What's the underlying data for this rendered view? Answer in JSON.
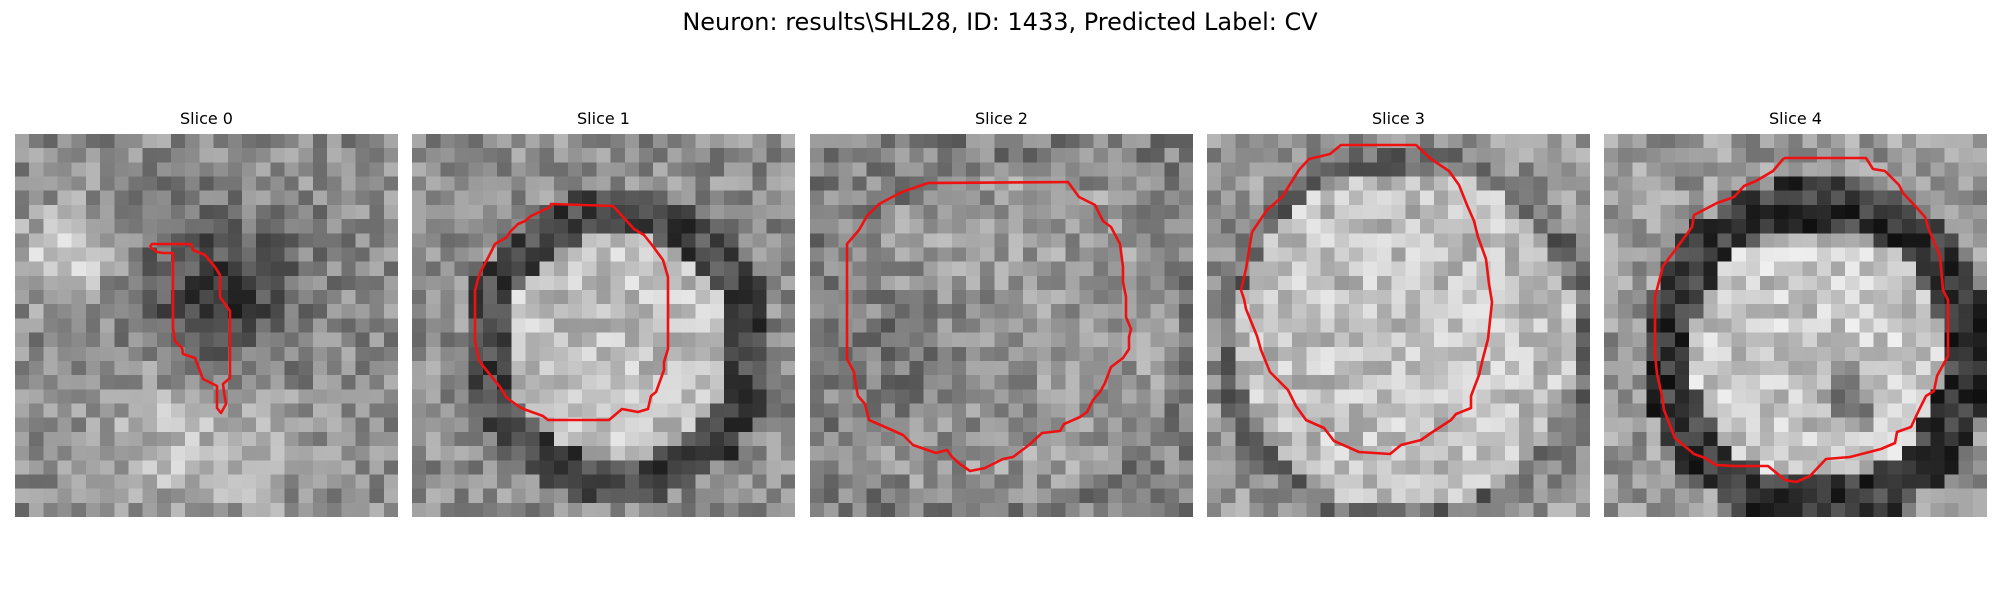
{
  "figure": {
    "title": "Neuron: results\\SHL28, ID: 1433, Predicted Label: CV"
  },
  "colors": {
    "contour": "#ee1111",
    "background": "#ffffff"
  },
  "panels": [
    {
      "label": "Slice 0"
    },
    {
      "label": "Slice 1"
    },
    {
      "label": "Slice 2"
    },
    {
      "label": "Slice 3"
    },
    {
      "label": "Slice 4"
    }
  ]
}
